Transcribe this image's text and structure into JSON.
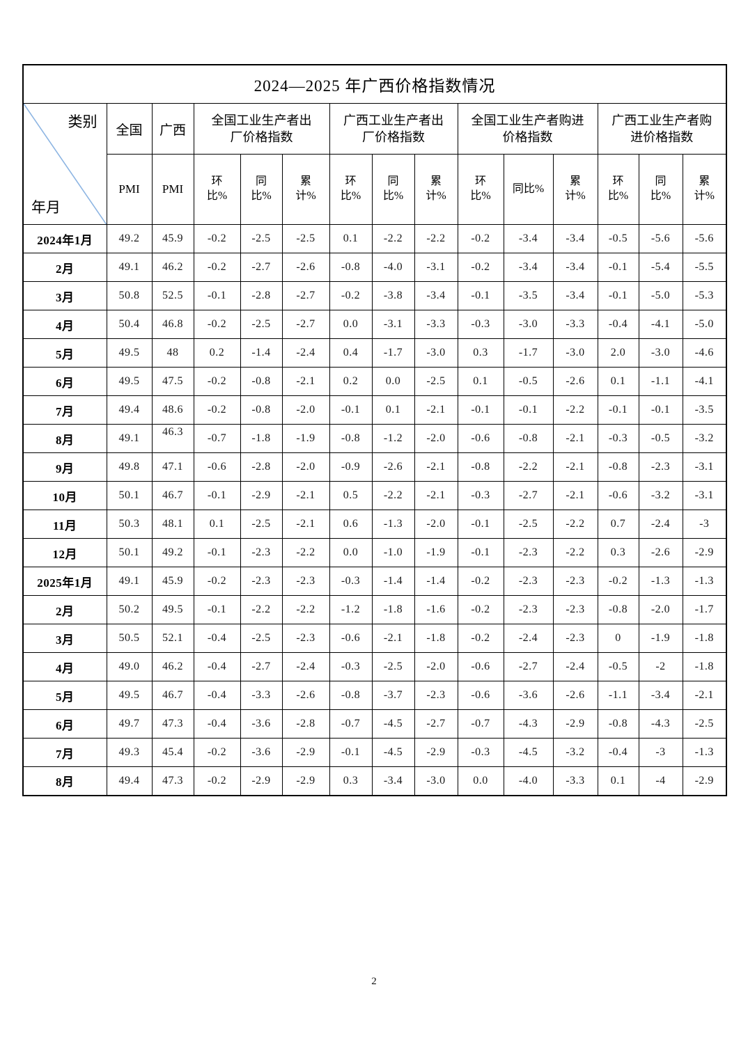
{
  "page": {
    "number": "2"
  },
  "table": {
    "title": "2024—2025 年广西价格指数情况",
    "corner": {
      "category_label": "类别",
      "period_label": "年月",
      "diagonal_color": "#8cb4e2"
    },
    "header": {
      "national": {
        "region": "全国",
        "metric": "PMI"
      },
      "guangxi": {
        "region": "广西",
        "metric": "PMI"
      },
      "groups": [
        {
          "label": "全国工业生产者出\n厂价格指数",
          "subs": [
            "环\n比%",
            "同\n比%",
            "累\n计%"
          ]
        },
        {
          "label": "广西工业生产者出\n厂价格指数",
          "subs": [
            "环\n比%",
            "同\n比%",
            "累\n计%"
          ]
        },
        {
          "label": "全国工业生产者购进\n价格指数",
          "subs": [
            "环\n比%",
            "同比%",
            "累\n计%"
          ]
        },
        {
          "label": "广西工业生产者购\n进价格指数",
          "subs": [
            "环\n比%",
            "同\n比%",
            "累\n计%"
          ]
        }
      ]
    },
    "rows": [
      {
        "label": "2024年1月",
        "values": [
          "49.2",
          "45.9",
          "-0.2",
          "-2.5",
          "-2.5",
          "0.1",
          "-2.2",
          "-2.2",
          "-0.2",
          "-3.4",
          "-3.4",
          "-0.5",
          "-5.6",
          "-5.6"
        ]
      },
      {
        "label": "2月",
        "values": [
          "49.1",
          "46.2",
          "-0.2",
          "-2.7",
          "-2.6",
          "-0.8",
          "-4.0",
          "-3.1",
          "-0.2",
          "-3.4",
          "-3.4",
          "-0.1",
          "-5.4",
          "-5.5"
        ]
      },
      {
        "label": "3月",
        "values": [
          "50.8",
          "52.5",
          "-0.1",
          "-2.8",
          "-2.7",
          "-0.2",
          "-3.8",
          "-3.4",
          "-0.1",
          "-3.5",
          "-3.4",
          "-0.1",
          "-5.0",
          "-5.3"
        ]
      },
      {
        "label": "4月",
        "values": [
          "50.4",
          "46.8",
          "-0.2",
          "-2.5",
          "-2.7",
          "0.0",
          "-3.1",
          "-3.3",
          "-0.3",
          "-3.0",
          "-3.3",
          "-0.4",
          "-4.1",
          "-5.0"
        ]
      },
      {
        "label": "5月",
        "values": [
          "49.5",
          "48",
          "0.2",
          "-1.4",
          "-2.4",
          "0.4",
          "-1.7",
          "-3.0",
          "0.3",
          "-1.7",
          "-3.0",
          "2.0",
          "-3.0",
          "-4.6"
        ]
      },
      {
        "label": "6月",
        "values": [
          "49.5",
          "47.5",
          "-0.2",
          "-0.8",
          "-2.1",
          "0.2",
          "0.0",
          "-2.5",
          "0.1",
          "-0.5",
          "-2.6",
          "0.1",
          "-1.1",
          "-4.1"
        ]
      },
      {
        "label": "7月",
        "values": [
          "49.4",
          "48.6",
          "-0.2",
          "-0.8",
          "-2.0",
          "-0.1",
          "0.1",
          "-2.1",
          "-0.1",
          "-0.1",
          "-2.2",
          "-0.1",
          "-0.1",
          "-3.5"
        ]
      },
      {
        "label": "8月",
        "values": [
          "49.1",
          "46.3",
          "-0.7",
          "-1.8",
          "-1.9",
          "-0.8",
          "-1.2",
          "-2.0",
          "-0.6",
          "-0.8",
          "-2.1",
          "-0.3",
          "-0.5",
          "-3.2"
        ]
      },
      {
        "label": "9月",
        "values": [
          "49.8",
          "47.1",
          "-0.6",
          "-2.8",
          "-2.0",
          "-0.9",
          "-2.6",
          "-2.1",
          "-0.8",
          "-2.2",
          "-2.1",
          "-0.8",
          "-2.3",
          "-3.1"
        ]
      },
      {
        "label": "10月",
        "values": [
          "50.1",
          "46.7",
          "-0.1",
          "-2.9",
          "-2.1",
          "0.5",
          "-2.2",
          "-2.1",
          "-0.3",
          "-2.7",
          "-2.1",
          "-0.6",
          "-3.2",
          "-3.1"
        ]
      },
      {
        "label": "11月",
        "values": [
          "50.3",
          "48.1",
          "0.1",
          "-2.5",
          "-2.1",
          "0.6",
          "-1.3",
          "-2.0",
          "-0.1",
          "-2.5",
          "-2.2",
          "0.7",
          "-2.4",
          "-3"
        ]
      },
      {
        "label": "12月",
        "values": [
          "50.1",
          "49.2",
          "-0.1",
          "-2.3",
          "-2.2",
          "0.0",
          "-1.0",
          "-1.9",
          "-0.1",
          "-2.3",
          "-2.2",
          "0.3",
          "-2.6",
          "-2.9"
        ]
      },
      {
        "label": "2025年1月",
        "values": [
          "49.1",
          "45.9",
          "-0.2",
          "-2.3",
          "-2.3",
          "-0.3",
          "-1.4",
          "-1.4",
          "-0.2",
          "-2.3",
          "-2.3",
          "-0.2",
          "-1.3",
          "-1.3"
        ]
      },
      {
        "label": "2月",
        "values": [
          "50.2",
          "49.5",
          "-0.1",
          "-2.2",
          "-2.2",
          "-1.2",
          "-1.8",
          "-1.6",
          "-0.2",
          "-2.3",
          "-2.3",
          "-0.8",
          "-2.0",
          "-1.7"
        ]
      },
      {
        "label": "3月",
        "values": [
          "50.5",
          "52.1",
          "-0.4",
          "-2.5",
          "-2.3",
          "-0.6",
          "-2.1",
          "-1.8",
          "-0.2",
          "-2.4",
          "-2.3",
          "0",
          "-1.9",
          "-1.8"
        ]
      },
      {
        "label": "4月",
        "values": [
          "49.0",
          "46.2",
          "-0.4",
          "-2.7",
          "-2.4",
          "-0.3",
          "-2.5",
          "-2.0",
          "-0.6",
          "-2.7",
          "-2.4",
          "-0.5",
          "-2",
          "-1.8"
        ]
      },
      {
        "label": "5月",
        "values": [
          "49.5",
          "46.7",
          "-0.4",
          "-3.3",
          "-2.6",
          "-0.8",
          "-3.7",
          "-2.3",
          "-0.6",
          "-3.6",
          "-2.6",
          "-1.1",
          "-3.4",
          "-2.1"
        ]
      },
      {
        "label": "6月",
        "values": [
          "49.7",
          "47.3",
          "-0.4",
          "-3.6",
          "-2.8",
          "-0.7",
          "-4.5",
          "-2.7",
          "-0.7",
          "-4.3",
          "-2.9",
          "-0.8",
          "-4.3",
          "-2.5"
        ]
      },
      {
        "label": "7月",
        "values": [
          "49.3",
          "45.4",
          "-0.2",
          "-3.6",
          "-2.9",
          "-0.1",
          "-4.5",
          "-2.9",
          "-0.3",
          "-4.5",
          "-3.2",
          "-0.4",
          "-3",
          "-1.3"
        ]
      },
      {
        "label": "8月",
        "values": [
          "49.4",
          "47.3",
          "-0.2",
          "-2.9",
          "-2.9",
          "0.3",
          "-3.4",
          "-3.0",
          "0.0",
          "-4.0",
          "-3.3",
          "0.1",
          "-4",
          "-2.9"
        ]
      }
    ]
  }
}
